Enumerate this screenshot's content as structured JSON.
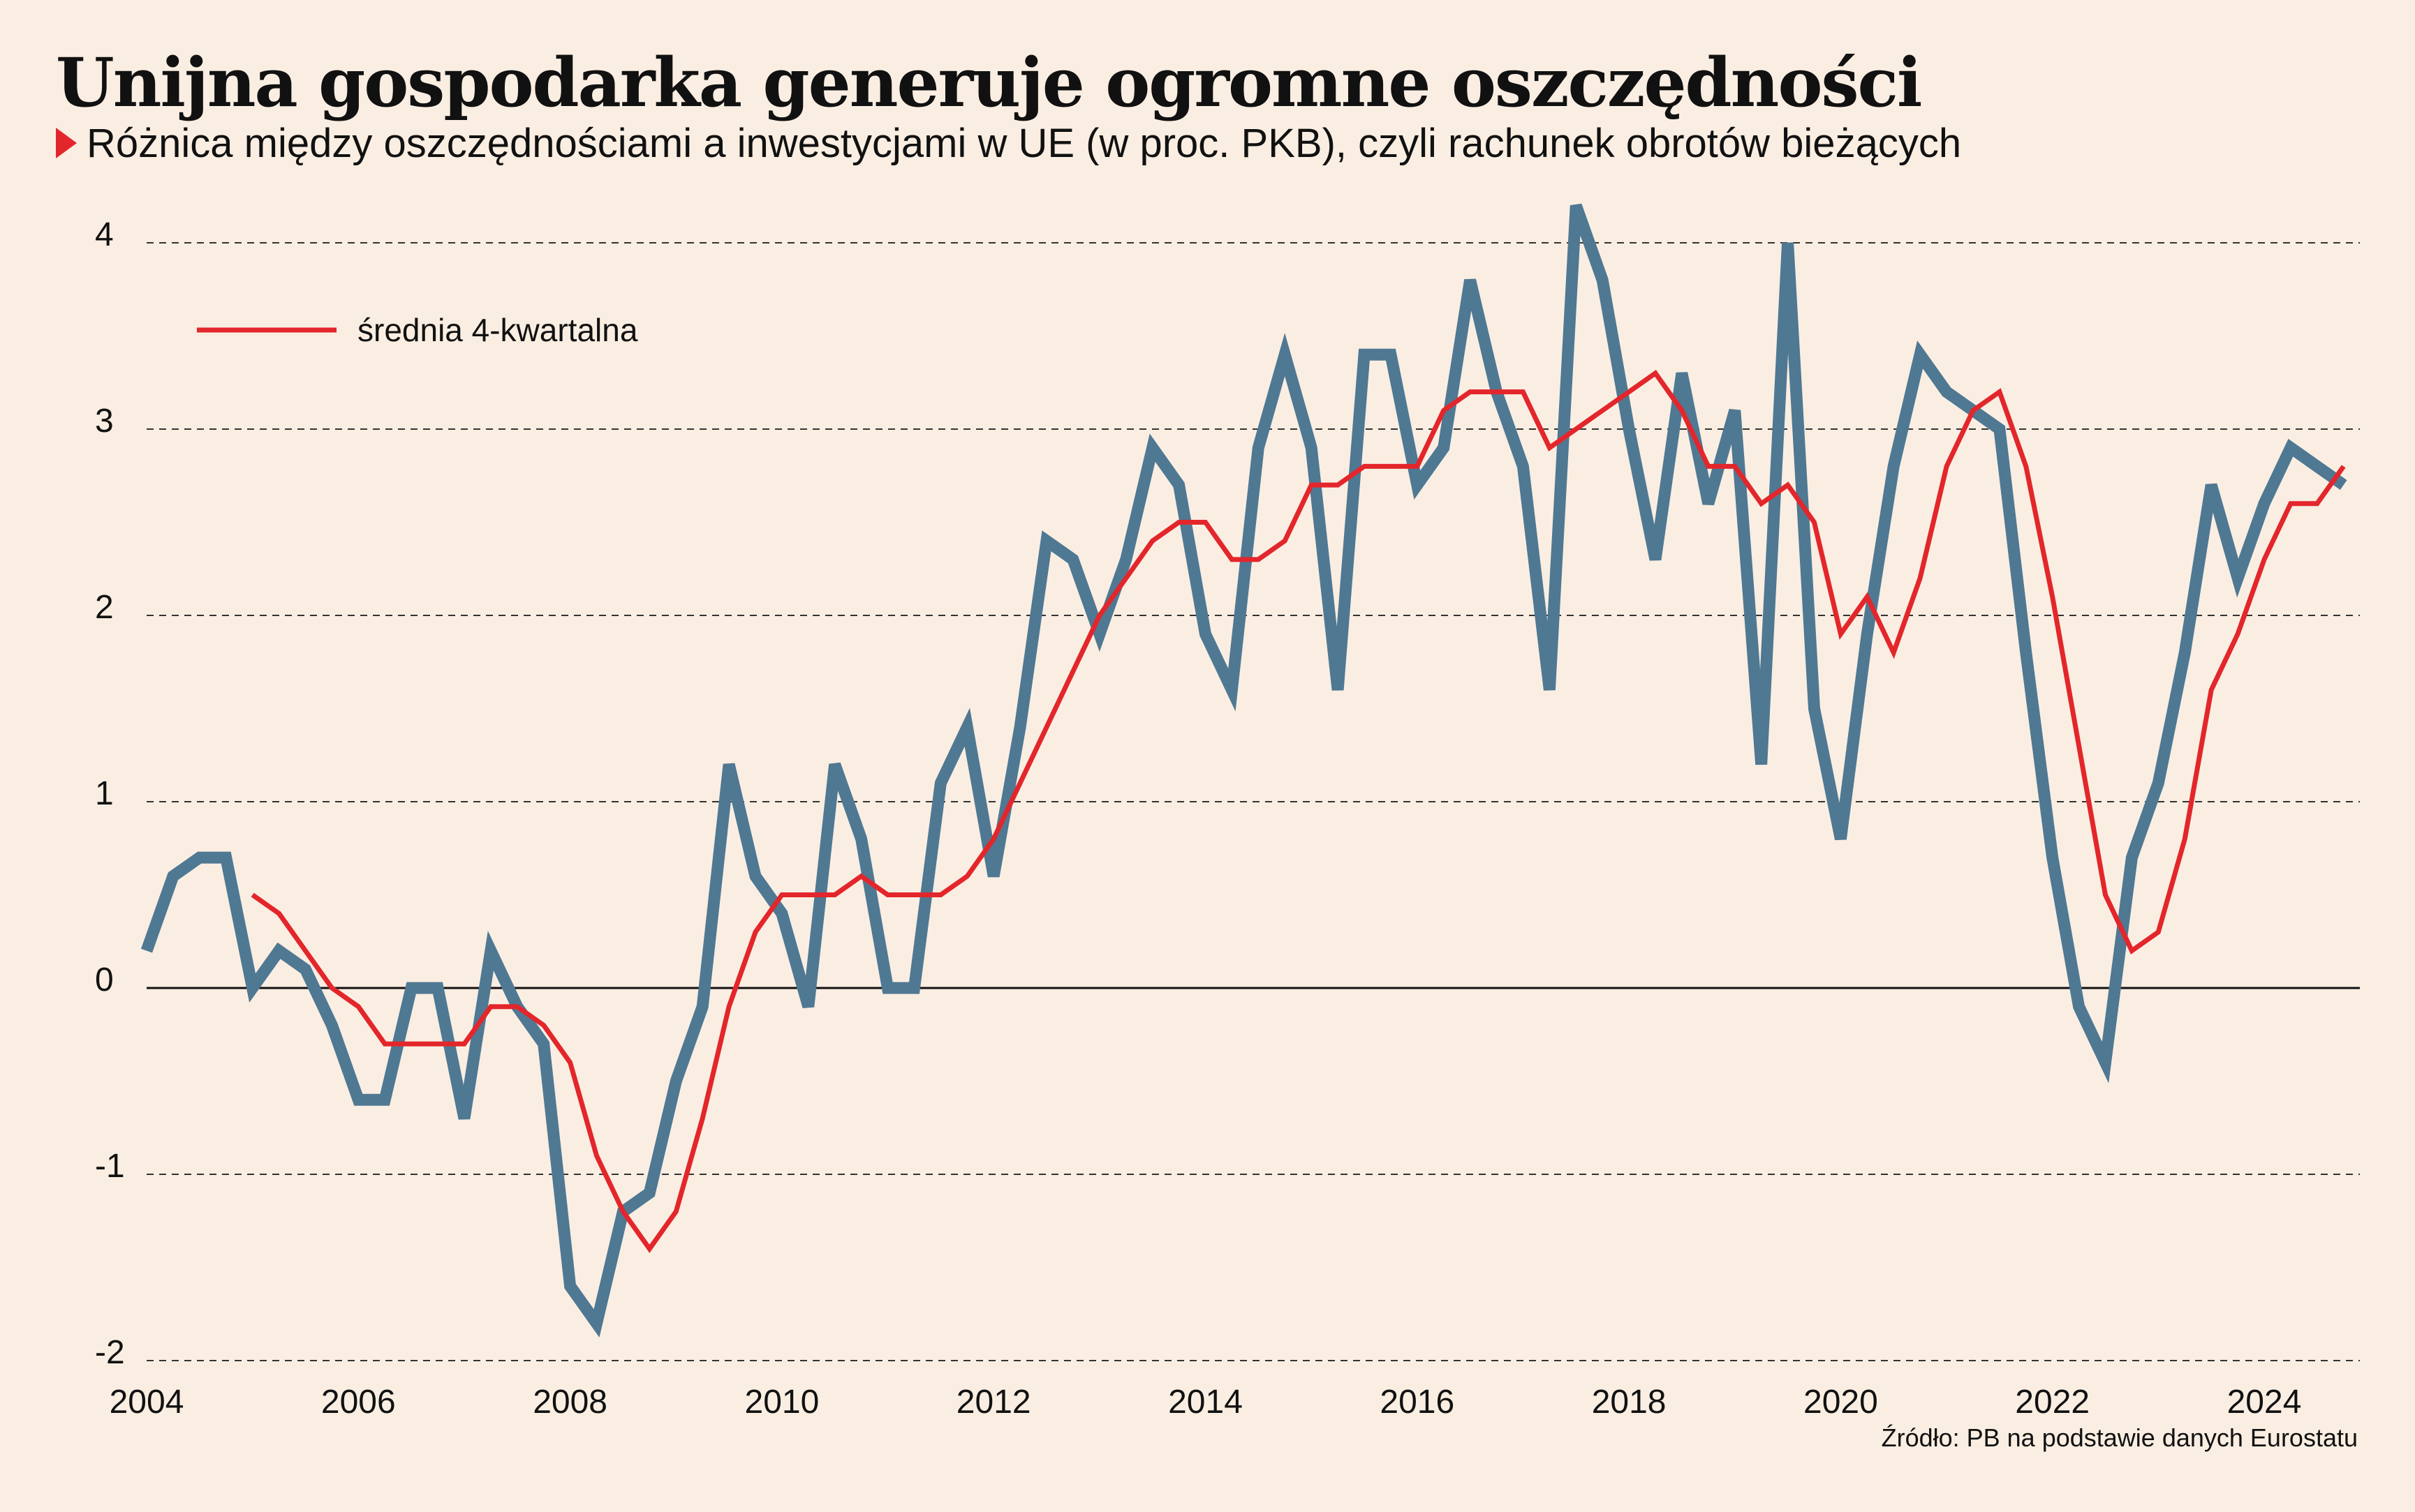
{
  "title": "Unijna gospodarka generuje ogromne oszczędności",
  "subtitle": "Różnica między oszczędnościami a inwestycjami w UE (w proc. PKB), czyli rachunek obrotów bieżących",
  "source": "Źródło: PB na podstawie danych Eurostatu",
  "colors": {
    "background": "#faeee2",
    "main_series": "#4f7893",
    "average_series": "#e3262b",
    "subtitle_marker": "#e3262b"
  },
  "chart_data": {
    "type": "line",
    "xlim": [
      2004,
      2025
    ],
    "ylim": [
      -2,
      4.2
    ],
    "x_ticks": [
      2004,
      2006,
      2008,
      2010,
      2012,
      2014,
      2016,
      2018,
      2020,
      2022,
      2024
    ],
    "y_ticks": [
      -2,
      -1,
      0,
      1,
      2,
      3,
      4
    ],
    "grid": "horizontal dashed",
    "legend_position": "top-left",
    "legend": [
      "średnia 4-kwartalna"
    ],
    "series": [
      {
        "values": [
          [
            2004.0,
            0.2
          ],
          [
            2004.25,
            0.6
          ],
          [
            2004.5,
            0.7
          ],
          [
            2004.75,
            0.7
          ],
          [
            2005.0,
            0.0
          ],
          [
            2005.25,
            0.2
          ],
          [
            2005.5,
            0.1
          ],
          [
            2005.75,
            -0.2
          ],
          [
            2006.0,
            -0.6
          ],
          [
            2006.25,
            -0.6
          ],
          [
            2006.5,
            0.0
          ],
          [
            2006.75,
            0.0
          ],
          [
            2007.0,
            -0.7
          ],
          [
            2007.25,
            0.2
          ],
          [
            2007.5,
            -0.1
          ],
          [
            2007.75,
            -0.3
          ],
          [
            2008.0,
            -1.6
          ],
          [
            2008.25,
            -1.8
          ],
          [
            2008.5,
            -1.2
          ],
          [
            2008.75,
            -1.1
          ],
          [
            2009.0,
            -0.5
          ],
          [
            2009.25,
            -0.1
          ],
          [
            2009.5,
            1.2
          ],
          [
            2009.75,
            0.6
          ],
          [
            2010.0,
            0.4
          ],
          [
            2010.25,
            -0.1
          ],
          [
            2010.5,
            1.2
          ],
          [
            2010.75,
            0.8
          ],
          [
            2011.0,
            0.0
          ],
          [
            2011.25,
            0.0
          ],
          [
            2011.5,
            1.1
          ],
          [
            2011.75,
            1.4
          ],
          [
            2012.0,
            0.6
          ],
          [
            2012.25,
            1.4
          ],
          [
            2012.5,
            2.4
          ],
          [
            2012.75,
            2.3
          ],
          [
            2013.0,
            1.9
          ],
          [
            2013.25,
            2.3
          ],
          [
            2013.5,
            2.9
          ],
          [
            2013.75,
            2.7
          ],
          [
            2014.0,
            1.9
          ],
          [
            2014.25,
            1.6
          ],
          [
            2014.5,
            2.9
          ],
          [
            2014.75,
            3.4
          ],
          [
            2015.0,
            2.9
          ],
          [
            2015.25,
            1.6
          ],
          [
            2015.5,
            3.4
          ],
          [
            2015.75,
            3.4
          ],
          [
            2016.0,
            2.7
          ],
          [
            2016.25,
            2.9
          ],
          [
            2016.5,
            3.8
          ],
          [
            2016.75,
            3.2
          ],
          [
            2017.0,
            2.8
          ],
          [
            2017.25,
            1.6
          ],
          [
            2017.5,
            4.2
          ],
          [
            2017.75,
            3.8
          ],
          [
            2018.0,
            3.0
          ],
          [
            2018.25,
            2.3
          ],
          [
            2018.5,
            3.3
          ],
          [
            2018.75,
            2.6
          ],
          [
            2019.0,
            3.1
          ],
          [
            2019.25,
            1.2
          ],
          [
            2019.5,
            4.0
          ],
          [
            2019.75,
            1.5
          ],
          [
            2020.0,
            0.8
          ],
          [
            2020.25,
            1.9
          ],
          [
            2020.5,
            2.8
          ],
          [
            2020.75,
            3.4
          ],
          [
            2021.0,
            3.2
          ],
          [
            2021.25,
            3.1
          ],
          [
            2021.5,
            3.0
          ],
          [
            2021.75,
            1.8
          ],
          [
            2022.0,
            0.7
          ],
          [
            2022.25,
            -0.1
          ],
          [
            2022.5,
            -0.4
          ],
          [
            2022.75,
            0.7
          ],
          [
            2023.0,
            1.1
          ],
          [
            2023.25,
            1.8
          ],
          [
            2023.5,
            2.7
          ],
          [
            2023.75,
            2.2
          ],
          [
            2024.0,
            2.6
          ],
          [
            2024.25,
            2.9
          ],
          [
            2024.5,
            2.8
          ],
          [
            2024.75,
            2.7
          ]
        ]
      },
      {
        "name": "średnia 4-kwartalna",
        "values": [
          [
            2005.0,
            0.5
          ],
          [
            2005.25,
            0.4
          ],
          [
            2005.5,
            0.2
          ],
          [
            2005.75,
            0.0
          ],
          [
            2006.0,
            -0.1
          ],
          [
            2006.25,
            -0.3
          ],
          [
            2006.5,
            -0.3
          ],
          [
            2006.75,
            -0.3
          ],
          [
            2007.0,
            -0.3
          ],
          [
            2007.25,
            -0.1
          ],
          [
            2007.5,
            -0.1
          ],
          [
            2007.75,
            -0.2
          ],
          [
            2008.0,
            -0.4
          ],
          [
            2008.25,
            -0.9
          ],
          [
            2008.5,
            -1.2
          ],
          [
            2008.75,
            -1.4
          ],
          [
            2009.0,
            -1.2
          ],
          [
            2009.25,
            -0.7
          ],
          [
            2009.5,
            -0.1
          ],
          [
            2009.75,
            0.3
          ],
          [
            2010.0,
            0.5
          ],
          [
            2010.25,
            0.5
          ],
          [
            2010.5,
            0.5
          ],
          [
            2010.75,
            0.6
          ],
          [
            2011.0,
            0.5
          ],
          [
            2011.25,
            0.5
          ],
          [
            2011.5,
            0.5
          ],
          [
            2011.75,
            0.6
          ],
          [
            2012.0,
            0.8
          ],
          [
            2012.25,
            1.1
          ],
          [
            2012.5,
            1.4
          ],
          [
            2012.75,
            1.7
          ],
          [
            2013.0,
            2.0
          ],
          [
            2013.25,
            2.2
          ],
          [
            2013.5,
            2.4
          ],
          [
            2013.75,
            2.5
          ],
          [
            2014.0,
            2.5
          ],
          [
            2014.25,
            2.3
          ],
          [
            2014.5,
            2.3
          ],
          [
            2014.75,
            2.4
          ],
          [
            2015.0,
            2.7
          ],
          [
            2015.25,
            2.7
          ],
          [
            2015.5,
            2.8
          ],
          [
            2015.75,
            2.8
          ],
          [
            2016.0,
            2.8
          ],
          [
            2016.25,
            3.1
          ],
          [
            2016.5,
            3.2
          ],
          [
            2016.75,
            3.2
          ],
          [
            2017.0,
            3.2
          ],
          [
            2017.25,
            2.9
          ],
          [
            2017.5,
            3.0
          ],
          [
            2017.75,
            3.1
          ],
          [
            2018.0,
            3.2
          ],
          [
            2018.25,
            3.3
          ],
          [
            2018.5,
            3.1
          ],
          [
            2018.75,
            2.8
          ],
          [
            2019.0,
            2.8
          ],
          [
            2019.25,
            2.6
          ],
          [
            2019.5,
            2.7
          ],
          [
            2019.75,
            2.5
          ],
          [
            2020.0,
            1.9
          ],
          [
            2020.25,
            2.1
          ],
          [
            2020.5,
            1.8
          ],
          [
            2020.75,
            2.2
          ],
          [
            2021.0,
            2.8
          ],
          [
            2021.25,
            3.1
          ],
          [
            2021.5,
            3.2
          ],
          [
            2021.75,
            2.8
          ],
          [
            2022.0,
            2.1
          ],
          [
            2022.25,
            1.3
          ],
          [
            2022.5,
            0.5
          ],
          [
            2022.75,
            0.2
          ],
          [
            2023.0,
            0.3
          ],
          [
            2023.25,
            0.8
          ],
          [
            2023.5,
            1.6
          ],
          [
            2023.75,
            1.9
          ],
          [
            2024.0,
            2.3
          ],
          [
            2024.25,
            2.6
          ],
          [
            2024.5,
            2.6
          ],
          [
            2024.75,
            2.8
          ]
        ]
      }
    ]
  }
}
